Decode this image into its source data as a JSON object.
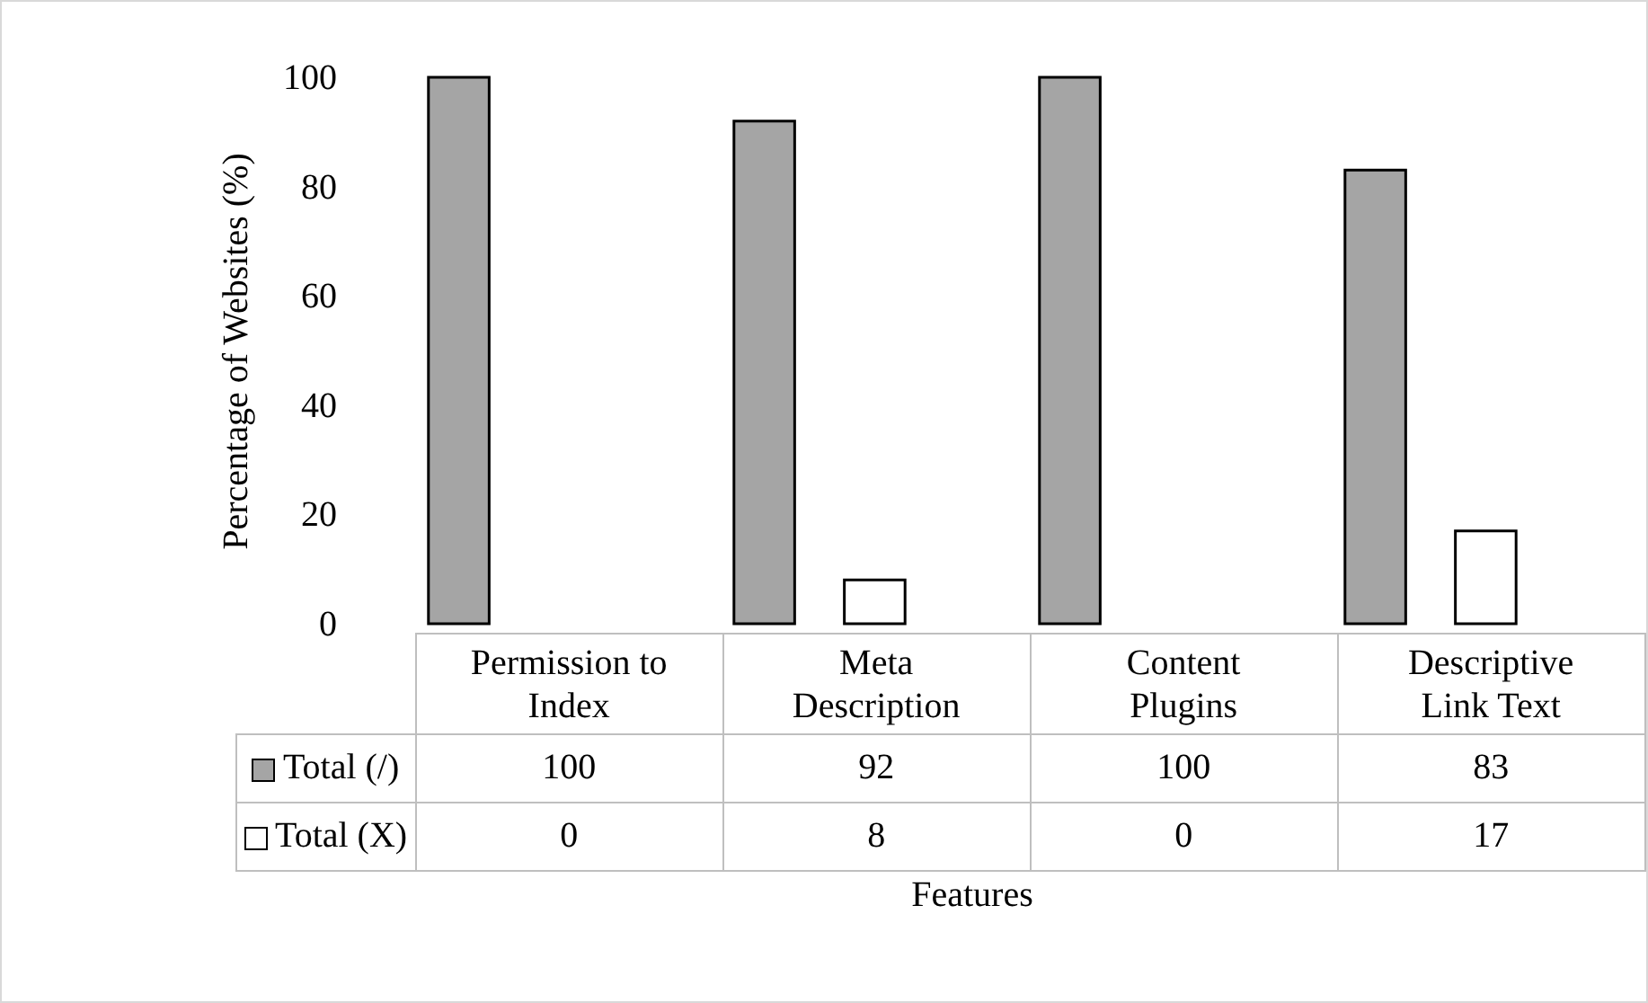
{
  "chart_data": {
    "type": "bar",
    "xlabel": "Features",
    "ylabel": "Percentage of Websites (%)",
    "categories": [
      "Permission to Index",
      "Meta Description",
      "Content Plugins",
      "Descriptive Link Text"
    ],
    "series": [
      {
        "name": "Total (/)",
        "color": "#a5a5a5",
        "values": [
          100,
          92,
          100,
          83
        ]
      },
      {
        "name": "Total (X)",
        "color": "#ffffff",
        "values": [
          0,
          8,
          0,
          17
        ]
      }
    ],
    "ylim": [
      0,
      100
    ],
    "yticks": [
      0,
      20,
      40,
      60,
      80,
      100
    ],
    "data_labels": true,
    "legend": "bottom left",
    "grid": false
  }
}
